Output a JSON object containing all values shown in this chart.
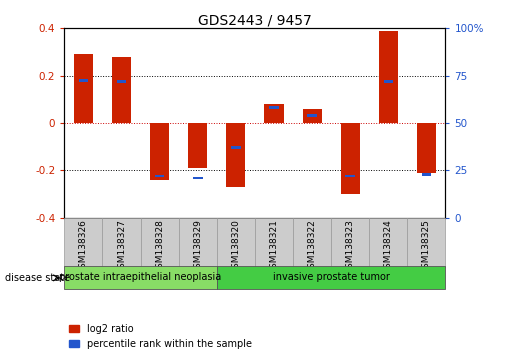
{
  "title": "GDS2443 / 9457",
  "samples": [
    "GSM138326",
    "GSM138327",
    "GSM138328",
    "GSM138329",
    "GSM138320",
    "GSM138321",
    "GSM138322",
    "GSM138323",
    "GSM138324",
    "GSM138325"
  ],
  "log2_ratio": [
    0.29,
    0.28,
    -0.24,
    -0.19,
    -0.27,
    0.08,
    0.06,
    -0.3,
    0.39,
    -0.21
  ],
  "percentile_rank": [
    0.725,
    0.72,
    0.22,
    0.21,
    0.37,
    0.58,
    0.54,
    0.22,
    0.72,
    0.23
  ],
  "bar_color": "#cc2200",
  "pct_color": "#2255cc",
  "ylim": [
    -0.4,
    0.4
  ],
  "y2lim": [
    0,
    100
  ],
  "yticks": [
    -0.4,
    -0.2,
    0.0,
    0.2,
    0.4
  ],
  "y2ticks": [
    0,
    25,
    50,
    75,
    100
  ],
  "ytick_labels": [
    "-0.4",
    "-0.2",
    "0",
    "0.2",
    "0.4"
  ],
  "y2tick_labels": [
    "0",
    "25",
    "50",
    "75",
    "100%"
  ],
  "groups": [
    {
      "label": "prostate intraepithelial neoplasia",
      "start": 0,
      "end": 4,
      "color": "#88dd66"
    },
    {
      "label": "invasive prostate tumor",
      "start": 4,
      "end": 10,
      "color": "#44cc44"
    }
  ],
  "disease_state_label": "disease state",
  "legend_log2": "log2 ratio",
  "legend_pct": "percentile rank within the sample",
  "bar_width": 0.5,
  "pct_bar_width": 0.25,
  "pct_bar_height": 0.012,
  "zero_line_color": "#cc0000",
  "bg_color": "#ffffff"
}
